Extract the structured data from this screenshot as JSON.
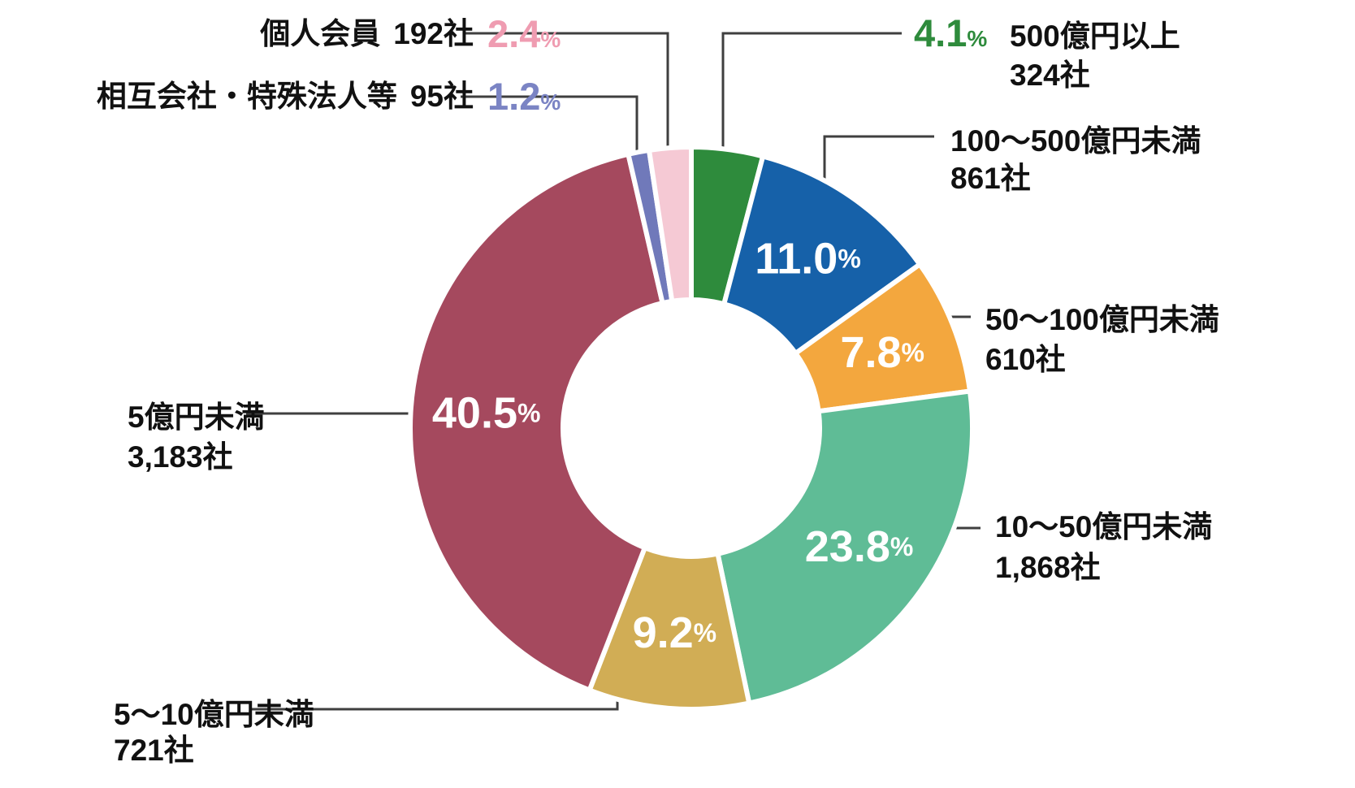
{
  "chart_data": {
    "type": "pie",
    "subtype": "donut",
    "title": "",
    "legend_position": "around",
    "unit_sign": "%",
    "start_angle_deg": 0,
    "direction": "clockwise",
    "slices": [
      {
        "label": "500億円以上",
        "count": "324社",
        "pct": "4.1",
        "value": 4.1,
        "color": "#2e8b3c",
        "pct_color": "#2e8b3c",
        "label_inside": false
      },
      {
        "label": "100〜500億円未満",
        "count": "861社",
        "pct": "11.0",
        "value": 11.0,
        "color": "#1661a9",
        "pct_color": "#ffffff",
        "label_inside": true
      },
      {
        "label": "50〜100億円未満",
        "count": "610社",
        "pct": "7.8",
        "value": 7.8,
        "color": "#f3a73e",
        "pct_color": "#ffffff",
        "label_inside": true
      },
      {
        "label": "10〜50億円未満",
        "count": "1,868社",
        "pct": "23.8",
        "value": 23.8,
        "color": "#5fbc96",
        "pct_color": "#ffffff",
        "label_inside": true
      },
      {
        "label": "5〜10億円未満",
        "count": "721社",
        "pct": "9.2",
        "value": 9.2,
        "color": "#d1ad55",
        "pct_color": "#ffffff",
        "label_inside": true
      },
      {
        "label": "5億円未満",
        "count": "3,183社",
        "pct": "40.5",
        "value": 40.5,
        "color": "#a5495e",
        "pct_color": "#ffffff",
        "label_inside": true
      },
      {
        "label": "相互会社・特殊法人等",
        "count": "95社",
        "pct": "1.2",
        "value": 1.2,
        "color": "#7079ba",
        "pct_color": "#7b84c4",
        "label_inside": false
      },
      {
        "label": "個人会員",
        "count": "192社",
        "pct": "2.4",
        "value": 2.4,
        "color": "#f5c9d4",
        "pct_color": "#ef9cb1",
        "label_inside": false
      }
    ]
  }
}
